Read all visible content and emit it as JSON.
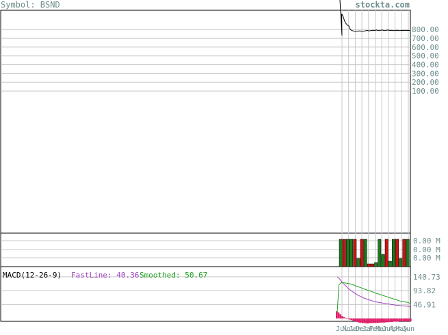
{
  "header": {
    "symbol_label": "Symbol: BSND",
    "brand": "stockta.com"
  },
  "colors": {
    "price_line": "#000000",
    "grid": "#c8c8c8",
    "axis_text": "#6e8c8c",
    "volume_up": "#1e7a1e",
    "volume_down": "#cc1111",
    "fast_line": "#a040c0",
    "smoothed": "#20a020",
    "histogram": "#e0206a"
  },
  "chart_data": [
    {
      "type": "line",
      "panel": "price",
      "title": "",
      "y_tick_labels": [
        "800.00",
        "700.00",
        "600.00",
        "500.00",
        "400.00",
        "300.00",
        "200.00",
        "100.00"
      ],
      "y_ticks": [
        800,
        700,
        600,
        500,
        400,
        300,
        200,
        100
      ],
      "ylim": [
        -1520,
        1020
      ],
      "series": [
        {
          "values": [
            1000,
            1000,
            1000,
            1000,
            980,
            950,
            900,
            870,
            850,
            840,
            800,
            790,
            785,
            780,
            780,
            782,
            785,
            783,
            780,
            782,
            785,
            788,
            790,
            785,
            788,
            790,
            792,
            790,
            795,
            790,
            788,
            792,
            795,
            790,
            788,
            792,
            795,
            790,
            792,
            790,
            788,
            790,
            792,
            790,
            788,
            790,
            791,
            790,
            792,
            790,
            791,
            790
          ]
        }
      ],
      "grid": true
    },
    {
      "type": "bar",
      "panel": "volume",
      "y_tick_labels": [
        "0.00 M",
        "0.00 M",
        "0.00 M"
      ],
      "ylim": [
        0,
        1
      ],
      "values": [
        1,
        1,
        1,
        1,
        1,
        0.3,
        1,
        1,
        0.1,
        0.1,
        0.15,
        1,
        0.45,
        1,
        0.2,
        1,
        1,
        0.3,
        1,
        1
      ],
      "directions": [
        "up",
        "down",
        "up",
        "up",
        "down",
        "up",
        "down",
        "up",
        "down",
        "down",
        "up",
        "up",
        "up",
        "down",
        "up",
        "up",
        "down",
        "up",
        "down",
        "up"
      ]
    },
    {
      "type": "line",
      "panel": "macd",
      "label": "MACD(12-26-9)",
      "fast_label": "FastLine: 40.36",
      "smoothed_label": "Smoothed: 50.67",
      "y_tick_labels": [
        "140.73",
        "93.82",
        "46.91"
      ],
      "y_ticks": [
        140.73,
        93.82,
        46.91
      ],
      "ylim": [
        -10,
        175
      ],
      "x_labels": [
        "Jul",
        "Nov",
        "Jan",
        "Dec",
        "Jan",
        "Feb",
        "Mar",
        "Jul",
        "Apr",
        "May",
        "Jun"
      ],
      "series": [
        {
          "name": "FastLine",
          "values": [
            140,
            136,
            128,
            120,
            114,
            108,
            102,
            97,
            92,
            88,
            84,
            80,
            77,
            74,
            71,
            68,
            66,
            64,
            62,
            60,
            58,
            56,
            55,
            54,
            53,
            52,
            51,
            50,
            49,
            48,
            47,
            46,
            45,
            44,
            44,
            43,
            42,
            42,
            41,
            41,
            40
          ]
        },
        {
          "name": "Smoothed",
          "values": [
            20,
            114,
            120,
            121,
            120,
            119,
            118,
            117,
            115,
            113,
            111,
            108,
            106,
            104,
            101,
            99,
            97,
            95,
            93,
            91,
            88,
            86,
            84,
            82,
            80,
            78,
            76,
            74,
            72,
            70,
            68,
            66,
            64,
            62,
            60,
            58,
            57,
            56,
            55,
            54,
            51
          ]
        },
        {
          "name": "Histogram",
          "values": [
            24,
            20,
            14,
            8,
            4,
            0,
            -2,
            -4,
            -6,
            -8,
            -10,
            -12,
            -14,
            -15,
            -16,
            -16,
            -17,
            -17,
            -16,
            -16,
            -16,
            -16,
            -15,
            -15,
            -14,
            -14,
            -14,
            -13,
            -13,
            -12,
            -12,
            -11,
            -11,
            -11,
            -10,
            -10,
            -10,
            -10,
            -10,
            -10,
            -10
          ]
        }
      ]
    }
  ]
}
